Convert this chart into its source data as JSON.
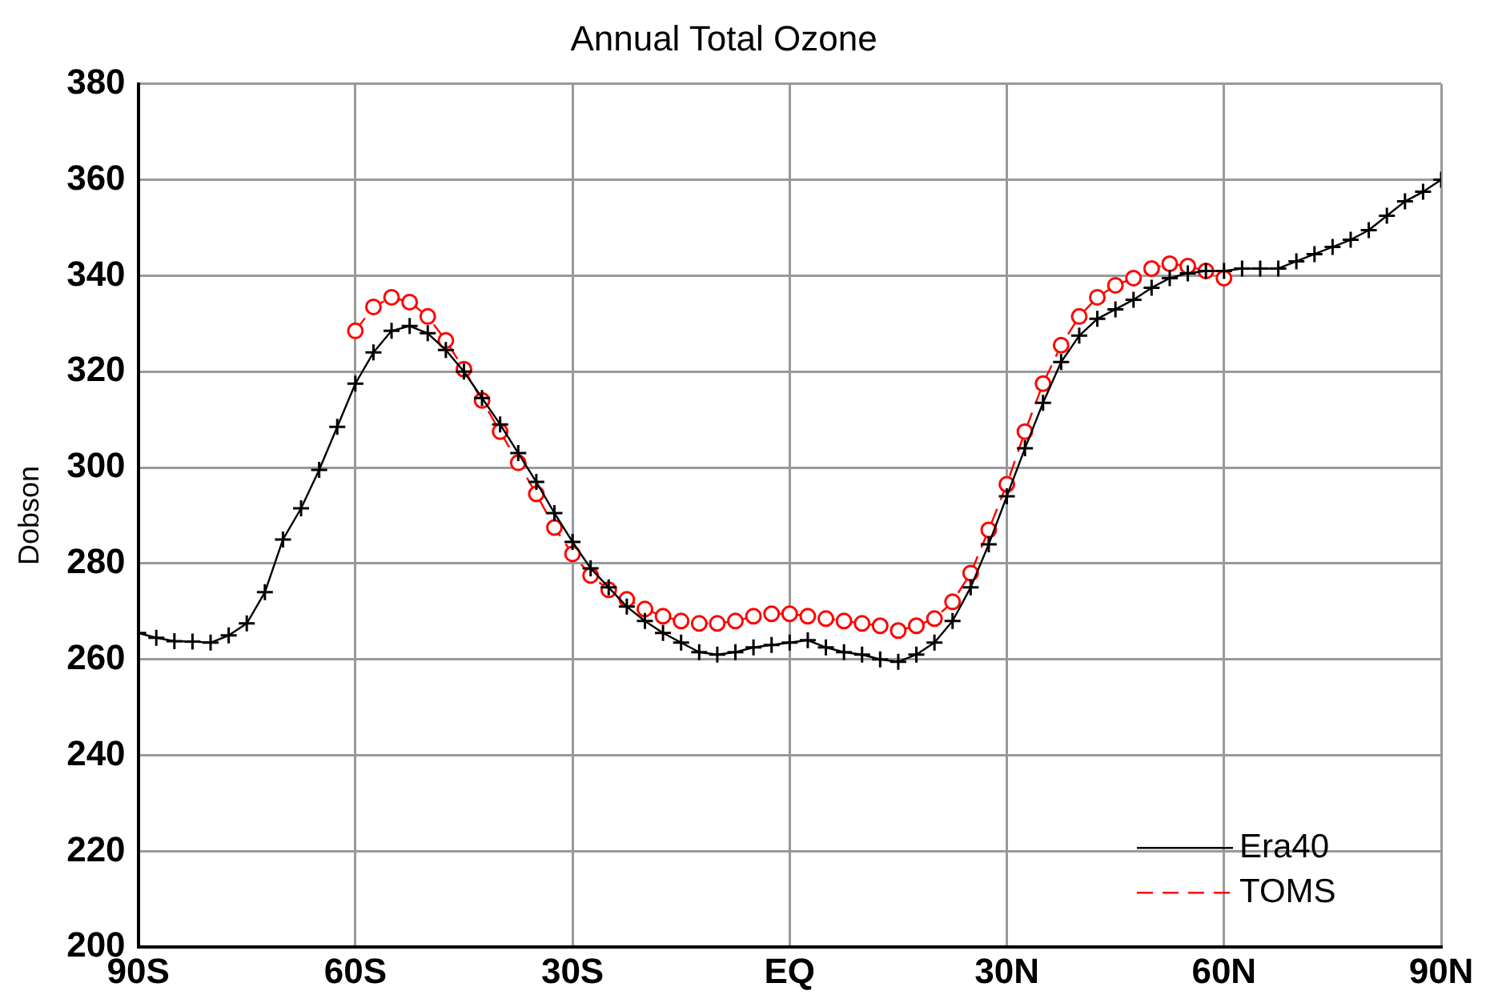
{
  "chart_data": {
    "type": "line",
    "title": "Annual Total Ozone",
    "ylabel": "Dobson",
    "xlim": [
      -90,
      90
    ],
    "xticks": [
      {
        "value": -90,
        "label": "90S"
      },
      {
        "value": -60,
        "label": "60S"
      },
      {
        "value": -30,
        "label": "30S"
      },
      {
        "value": 0,
        "label": "EQ"
      },
      {
        "value": 30,
        "label": "30N"
      },
      {
        "value": 60,
        "label": "60N"
      },
      {
        "value": 90,
        "label": "90N"
      }
    ],
    "ylim": [
      200,
      380
    ],
    "yticks": [
      200,
      220,
      240,
      260,
      280,
      300,
      320,
      340,
      360,
      380
    ],
    "grid": true,
    "legend": "bottom right",
    "series": [
      {
        "name": "Era40",
        "color": "#000000",
        "marker": "cross",
        "line_style": "solid",
        "x": [
          -90,
          -87.5,
          -85,
          -82.5,
          -80,
          -77.5,
          -75,
          -72.5,
          -70,
          -67.5,
          -65,
          -62.5,
          -60,
          -57.5,
          -55,
          -52.5,
          -50,
          -47.5,
          -45,
          -42.5,
          -40,
          -37.5,
          -35,
          -32.5,
          -30,
          -27.5,
          -25,
          -22.5,
          -20,
          -17.5,
          -15,
          -12.5,
          -10,
          -7.5,
          -5,
          -2.5,
          0,
          2.5,
          5,
          7.5,
          10,
          12.5,
          15,
          17.5,
          20,
          22.5,
          25,
          27.5,
          30,
          32.5,
          35,
          37.5,
          40,
          42.5,
          45,
          47.5,
          50,
          52.5,
          55,
          57.5,
          60,
          62.5,
          65,
          67.5,
          70,
          72.5,
          75,
          77.5,
          80,
          82.5,
          85,
          87.5,
          90
        ],
        "values": [
          265.5,
          264.5,
          263.8,
          263.7,
          263.5,
          265,
          267.5,
          274,
          285,
          291.5,
          299.5,
          308.5,
          317.5,
          324,
          328.5,
          329.5,
          328,
          324.5,
          320,
          314.5,
          309,
          303,
          297,
          290.5,
          284.5,
          279,
          275,
          271,
          268,
          265.5,
          263.5,
          261.5,
          261,
          261.5,
          262.5,
          263,
          263.5,
          264,
          262.5,
          261.5,
          261,
          260,
          259.5,
          261,
          263.5,
          268,
          275,
          284,
          294,
          304,
          313.5,
          322,
          327.5,
          331,
          333,
          335,
          337.5,
          339.5,
          340.5,
          341,
          341,
          341.5,
          341.5,
          341.5,
          343,
          344.5,
          346,
          347.5,
          349.5,
          352.5,
          355.5,
          357.5,
          360
        ]
      },
      {
        "name": "TOMS",
        "color": "#ff0000",
        "marker": "circle",
        "line_style": "dashed",
        "x": [
          -60,
          -57.5,
          -55,
          -52.5,
          -50,
          -47.5,
          -45,
          -42.5,
          -40,
          -37.5,
          -35,
          -32.5,
          -30,
          -27.5,
          -25,
          -22.5,
          -20,
          -17.5,
          -15,
          -12.5,
          -10,
          -7.5,
          -5,
          -2.5,
          0,
          2.5,
          5,
          7.5,
          10,
          12.5,
          15,
          17.5,
          20,
          22.5,
          25,
          27.5,
          30,
          32.5,
          35,
          37.5,
          40,
          42.5,
          45,
          47.5,
          50,
          52.5,
          55,
          57.5,
          60
        ],
        "values": [
          328.5,
          333.5,
          335.5,
          334.5,
          331.5,
          326.5,
          320.5,
          314,
          307.5,
          301,
          294.5,
          287.5,
          282,
          277.5,
          274.5,
          272.5,
          270.5,
          269,
          268,
          267.5,
          267.5,
          268,
          269,
          269.5,
          269.5,
          269,
          268.5,
          268,
          267.5,
          267,
          266,
          267,
          268.5,
          272,
          278,
          287,
          296.5,
          307.5,
          317.5,
          325.5,
          331.5,
          335.5,
          338,
          339.5,
          341.5,
          342.5,
          342,
          341,
          339.5
        ]
      }
    ]
  }
}
